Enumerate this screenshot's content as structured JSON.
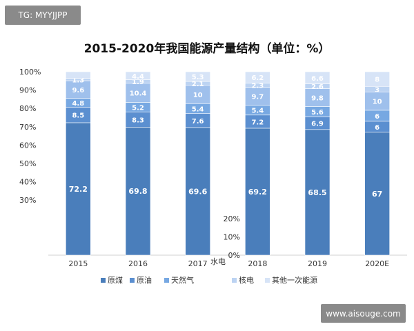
{
  "watermarks": {
    "top": "TG: MYYJJPP",
    "bottom": "www.aisouge.com"
  },
  "colors": {
    "coal": "#4a7ebb",
    "oil": "#5b8fd0",
    "gas": "#77a8e2",
    "hydro": "#9fc0ec",
    "nuclear": "#bcd3f2",
    "other": "#d7e4f7"
  },
  "chart_data": {
    "type": "bar",
    "stacked": true,
    "title": "2015-2020年我国能源产量结构（单位：%）",
    "categories": [
      "2015",
      "2016",
      "2017",
      "2018",
      "2019",
      "2020E"
    ],
    "ylim": [
      0,
      100
    ],
    "y_tick_labels": [
      "100%",
      "90%",
      "80%",
      "70%",
      "60%",
      "50%",
      "40%",
      "30%"
    ],
    "y_tick_values": [
      100,
      90,
      80,
      70,
      60,
      50,
      40,
      30
    ],
    "inset_tick_labels": [
      "20%",
      "10%",
      "0%"
    ],
    "inset_tick_values": [
      20,
      10,
      0
    ],
    "inset_label": "水电",
    "legend": [
      "原煤",
      "原油",
      "天然气",
      "",
      "核电",
      "其他一次能源"
    ],
    "series": [
      {
        "name": "原煤",
        "values": [
          72.2,
          69.8,
          69.6,
          69.2,
          68.5,
          67
        ],
        "labels": [
          "72.2",
          "69.8",
          "69.6",
          "69.2",
          "68.5",
          "67"
        ]
      },
      {
        "name": "原油",
        "values": [
          8.5,
          8.3,
          7.6,
          7.2,
          6.9,
          6
        ],
        "labels": [
          "8.5",
          "8.3",
          "7.6",
          "7.2",
          "6.9",
          "6"
        ]
      },
      {
        "name": "天然气",
        "values": [
          4.8,
          5.2,
          5.4,
          5.4,
          5.6,
          6
        ],
        "labels": [
          "4.8",
          "5.2",
          "5.4",
          "5.4",
          "5.6",
          "6"
        ]
      },
      {
        "name": "水电",
        "values": [
          9.6,
          10.4,
          10,
          9.7,
          9.8,
          10
        ],
        "labels": [
          "9.6",
          "10.4",
          "10",
          "9.7",
          "9.8",
          "10"
        ]
      },
      {
        "name": "核电",
        "values": [
          1.3,
          1.9,
          2.1,
          2.3,
          2.6,
          3
        ],
        "labels": [
          "1.3",
          "1.9",
          "2.1",
          "2.3",
          "2.6",
          "3"
        ]
      },
      {
        "name": "其他一次能源",
        "values": [
          3.6,
          4.4,
          5.3,
          6.2,
          6.6,
          8
        ],
        "labels": [
          "",
          "4.4",
          "5.3",
          "6.2",
          "6.6",
          "8"
        ]
      }
    ],
    "grid": false,
    "legend_position": "bottom"
  }
}
